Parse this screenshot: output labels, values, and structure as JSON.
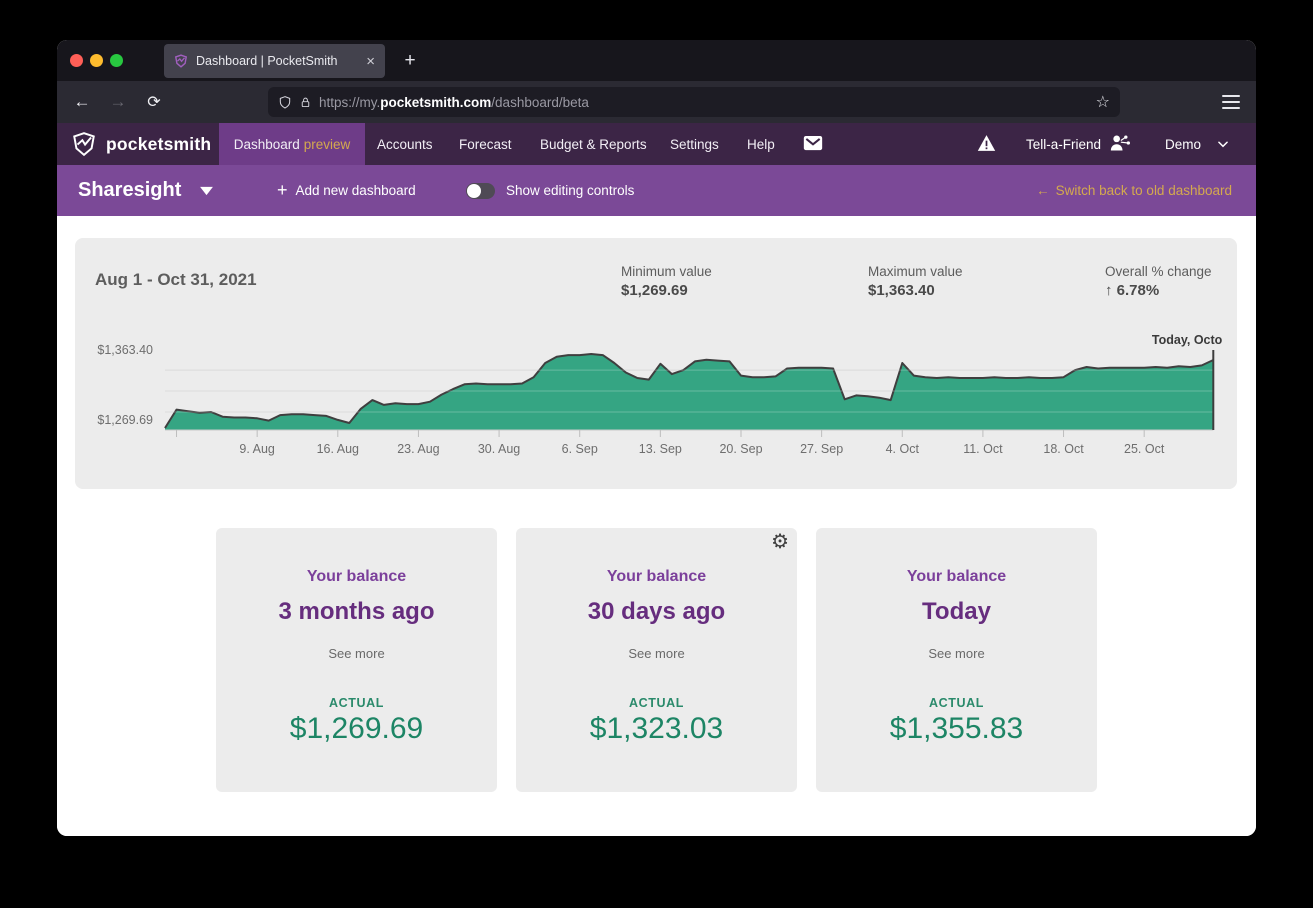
{
  "browser": {
    "tab": {
      "title": "Dashboard | PocketSmith"
    },
    "url": {
      "prefix": "https://my.",
      "domain": "pocketsmith.com",
      "path": "/dashboard/beta"
    }
  },
  "glyphs": {
    "close_tab": "×",
    "new_tab": "+",
    "back": "←",
    "forward": "→",
    "reload": "⟳",
    "star": "☆",
    "gear": "⚙",
    "plus": "+",
    "left_arrow": "←",
    "up_arrow": "↑"
  },
  "nav": {
    "logo_text": "pocketsmith",
    "active_tab": {
      "label": "Dashboard",
      "suffix": "preview"
    },
    "tabs": [
      "Accounts",
      "Forecast",
      "Budget & Reports",
      "Settings",
      "Help"
    ],
    "tell_a_friend": "Tell-a-Friend",
    "user_menu": "Demo"
  },
  "toolbar": {
    "dashboard_name": "Sharesight",
    "add_new_label": "Add new dashboard",
    "editing_toggle_label": "Show editing controls",
    "editing_toggle_state": "off",
    "switch_back_label": "Switch back to old dashboard"
  },
  "chart_card": {
    "title": "Aug 1 - Oct 31, 2021",
    "stats": [
      {
        "label": "Minimum value",
        "value": "$1,269.69"
      },
      {
        "label": "Maximum value",
        "value": "$1,363.40"
      },
      {
        "label": "Overall % change",
        "arrow": "↑",
        "value": "6.78%"
      }
    ]
  },
  "chart_data": {
    "type": "area",
    "title": "Aug 1 - Oct 31, 2021",
    "x_start": "2021-08-01",
    "x_end": "2021-10-31",
    "frequency": "daily",
    "y_axis": {
      "max": {
        "label": "$1,363.40",
        "value": 1363.4
      },
      "min": {
        "label": "$1,269.69",
        "value": 1269.69
      }
    },
    "gridline_values": [
      1290,
      1316.5,
      1343
    ],
    "x_ticks": [
      {
        "day": 1,
        "label": ""
      },
      {
        "day": 8,
        "label": "9. Aug"
      },
      {
        "day": 15,
        "label": "16. Aug"
      },
      {
        "day": 22,
        "label": "23. Aug"
      },
      {
        "day": 29,
        "label": "30. Aug"
      },
      {
        "day": 36,
        "label": "6. Sep"
      },
      {
        "day": 43,
        "label": "13. Sep"
      },
      {
        "day": 50,
        "label": "20. Sep"
      },
      {
        "day": 57,
        "label": "27. Sep"
      },
      {
        "day": 64,
        "label": "4. Oct"
      },
      {
        "day": 71,
        "label": "11. Oct"
      },
      {
        "day": 78,
        "label": "18. Oct"
      },
      {
        "day": 85,
        "label": "25. Oct"
      }
    ],
    "today_label": "Today, Octo",
    "values": [
      1269.69,
      1293,
      1291,
      1289,
      1290,
      1284,
      1283,
      1283,
      1282,
      1279,
      1286,
      1287,
      1287,
      1286,
      1285,
      1280,
      1276,
      1294,
      1305,
      1299,
      1301,
      1300,
      1300,
      1303,
      1312,
      1319,
      1325,
      1326,
      1325,
      1325,
      1325,
      1326,
      1334,
      1352,
      1360,
      1362,
      1362,
      1363.4,
      1362,
      1352,
      1340,
      1333,
      1331,
      1351,
      1338,
      1343,
      1354,
      1356,
      1355,
      1354,
      1336,
      1334,
      1334,
      1335,
      1345,
      1346,
      1346,
      1346,
      1345,
      1306,
      1311,
      1310,
      1308,
      1305,
      1352,
      1336,
      1334,
      1333,
      1334,
      1333,
      1333,
      1333,
      1334,
      1333,
      1333,
      1334,
      1333,
      1333,
      1334,
      1343,
      1347,
      1345,
      1346,
      1346,
      1346,
      1346,
      1347,
      1346,
      1348,
      1347,
      1349,
      1355.83
    ]
  },
  "balance_cards": [
    {
      "title": "Your balance",
      "period": "3 months ago",
      "link": "See more",
      "series_label": "ACTUAL",
      "amount": "$1,269.69"
    },
    {
      "title": "Your balance",
      "period": "30 days ago",
      "link": "See more",
      "series_label": "ACTUAL",
      "amount": "$1,323.03"
    },
    {
      "title": "Your balance",
      "period": "Today",
      "link": "See more",
      "series_label": "ACTUAL",
      "amount": "$1,355.83"
    }
  ],
  "colors": {
    "nav_bg": "#3c2546",
    "nav_active": "#6e3c88",
    "toolbar_bg": "#7b4997",
    "gold": "#d4a94e",
    "chart_green": "#35a583",
    "chart_stroke": "#3f3f3f",
    "card_bg": "#ececec",
    "purple_title": "#7b3f9b",
    "purple_heading": "#662d7e",
    "teal": "#1d8565",
    "teal_label": "#2a8a6b"
  }
}
